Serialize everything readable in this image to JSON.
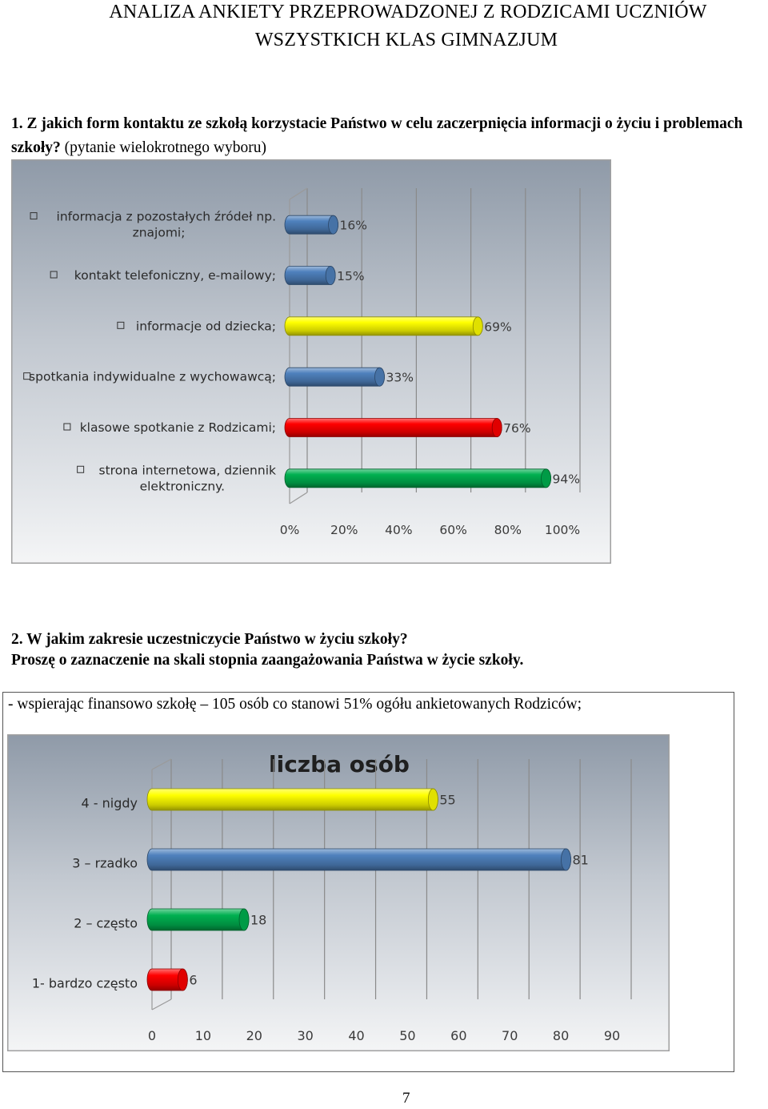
{
  "header": {
    "title_line1": "ANALIZA  ANKIETY  PRZEPROWADZONEJ  Z  RODZICAMI UCZNIÓW",
    "title_line2": "WSZYSTKICH KLAS GIMNAZJUM"
  },
  "question1": {
    "text_bold": "1. Z jakich form kontaktu ze szkołą korzystacie Państwo w celu zaczerpnięcia informacji o życiu i problemach szkoły?",
    "text_note": " (pytanie wielokrotnego wyboru)"
  },
  "question2": {
    "line1": "2. W jakim zakresie uczestniczycie Państwo w życiu szkoły?",
    "line2": "Proszę o zaznaczenie na skali stopnia zaangażowania Państwa w życie szkoły."
  },
  "answer_box": {
    "text": "- wspierając finansowo szkołę – 105 osób co stanowi 51% ogółu ankietowanych Rodziców;"
  },
  "page_number": "7",
  "chart_data": [
    {
      "type": "bar",
      "orientation": "horizontal",
      "title": "",
      "categories": [
        [
          "informacja z pozostałych źródeł np.",
          "znajomi;"
        ],
        [
          "kontakt telefoniczny, e-mailowy;"
        ],
        [
          "informacje od dziecka;"
        ],
        [
          "spotkania indywidualne z wychowawcą;"
        ],
        [
          "klasowe spotkanie z Rodzicami;"
        ],
        [
          "strona internetowa, dziennik",
          "elektroniczny."
        ]
      ],
      "values": [
        16,
        15,
        69,
        33,
        76,
        94
      ],
      "value_labels": [
        "16%",
        "15%",
        "69%",
        "33%",
        "76%",
        "94%"
      ],
      "colors": [
        "#4f81bd",
        "#4f81bd",
        "#ffff00",
        "#4f81bd",
        "#ff0000",
        "#00b050"
      ],
      "xlim": [
        0,
        100
      ],
      "xticks": [
        "0%",
        "20%",
        "40%",
        "60%",
        "80%",
        "100%"
      ],
      "grid": true,
      "legend_marker": true
    },
    {
      "type": "bar",
      "orientation": "horizontal",
      "title": "liczba osób",
      "categories": [
        [
          "4 - nigdy"
        ],
        [
          "3 – rzadko"
        ],
        [
          "2 – często"
        ],
        [
          "1- bardzo często"
        ]
      ],
      "values": [
        55,
        81,
        18,
        6
      ],
      "value_labels": [
        "55",
        "81",
        "18",
        "6"
      ],
      "colors": [
        "#ffff00",
        "#4f81bd",
        "#00b050",
        "#ff0000"
      ],
      "xlim": [
        0,
        90
      ],
      "xticks": [
        "0",
        "10",
        "20",
        "30",
        "40",
        "50",
        "60",
        "70",
        "80",
        "90"
      ],
      "grid": true,
      "legend_marker": false
    }
  ]
}
